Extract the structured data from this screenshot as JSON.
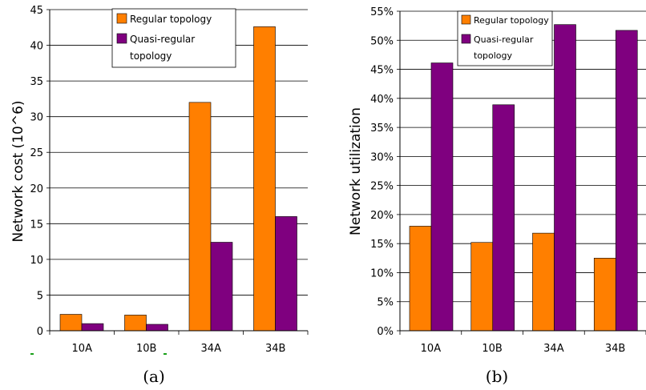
{
  "chart_data": [
    {
      "type": "bar",
      "caption": "(a)",
      "title": "",
      "xlabel": "",
      "ylabel": "Network cost (10^6)",
      "categories": [
        "10A",
        "10B",
        "34A",
        "34B"
      ],
      "ylim": [
        0,
        45
      ],
      "yticks": [
        "0",
        "5",
        "10",
        "15",
        "20",
        "25",
        "30",
        "35",
        "40",
        "45"
      ],
      "grid": "horizontal",
      "legend": "top-center",
      "series": [
        {
          "name": "Regular topology",
          "color": "#ff7f00",
          "values": [
            2.3,
            2.2,
            32.0,
            42.6
          ]
        },
        {
          "name": "Quasi-regular topology",
          "color": "#7f007f",
          "values": [
            1.0,
            0.9,
            12.4,
            16.0
          ]
        }
      ]
    },
    {
      "type": "bar",
      "caption": "(b)",
      "title": "",
      "xlabel": "",
      "ylabel": "Network utilization",
      "categories": [
        "10A",
        "10B",
        "34A",
        "34B"
      ],
      "ylim": [
        0,
        55
      ],
      "yticks": [
        "0%",
        "5%",
        "10%",
        "15%",
        "20%",
        "25%",
        "30%",
        "35%",
        "40%",
        "45%",
        "50%",
        "55%"
      ],
      "grid": "horizontal",
      "legend": "top-center",
      "series": [
        {
          "name": "Regular topology",
          "color": "#ff7f00",
          "values": [
            18.0,
            15.2,
            16.8,
            12.5
          ]
        },
        {
          "name": "Quasi-regular topology",
          "color": "#7f007f",
          "values": [
            46.1,
            38.9,
            52.7,
            51.7
          ]
        }
      ]
    }
  ]
}
